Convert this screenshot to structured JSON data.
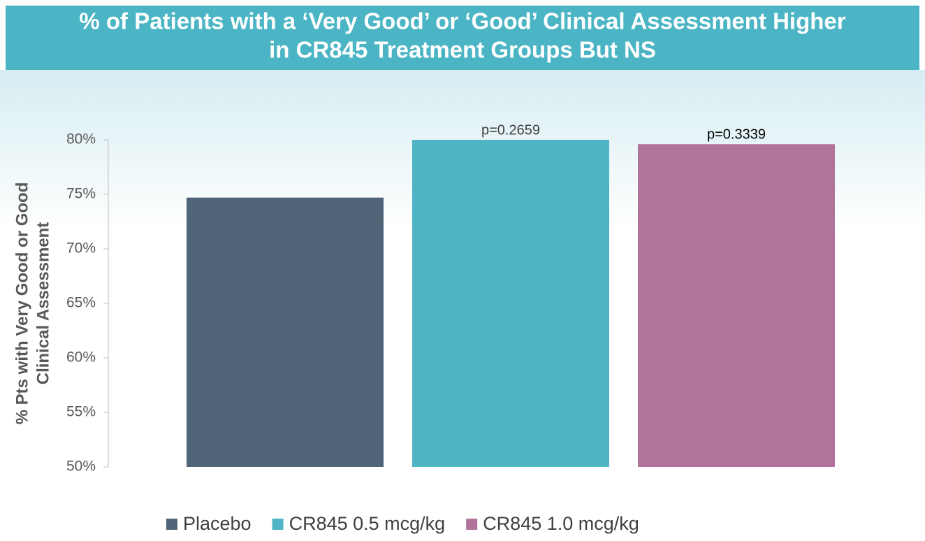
{
  "chart_data": {
    "type": "bar",
    "title": [
      "% of Patients with a ‘Very Good’ or ‘Good’ Clinical Assessment Higher",
      "in CR845 Treatment Groups But NS"
    ],
    "y_label": [
      "% Pts with Very Good or Good",
      "Clinical Assessment"
    ],
    "categories": [
      null
    ],
    "series": [
      {
        "name": "Placebo",
        "color": "#506577",
        "values": [
          74.7
        ]
      },
      {
        "name": "CR845 0.5 mcg/kg",
        "color": "#4fb4c3",
        "values": [
          80.0
        ],
        "annotation": "p=0.2659"
      },
      {
        "name": "CR845 1.0 mcg/kg",
        "color": "#b0739a",
        "values": [
          79.6
        ],
        "annotation": "p=0.3339"
      }
    ],
    "ylim": [
      50,
      80
    ],
    "yticks": [
      {
        "value": 50,
        "label": "50%"
      },
      {
        "value": 55,
        "label": "55%"
      },
      {
        "value": 60,
        "label": "60%"
      },
      {
        "value": 65,
        "label": "65%"
      },
      {
        "value": 70,
        "label": "70%"
      },
      {
        "value": 75,
        "label": "75%"
      },
      {
        "value": 80,
        "label": "80%"
      }
    ],
    "legend": "bottom"
  }
}
